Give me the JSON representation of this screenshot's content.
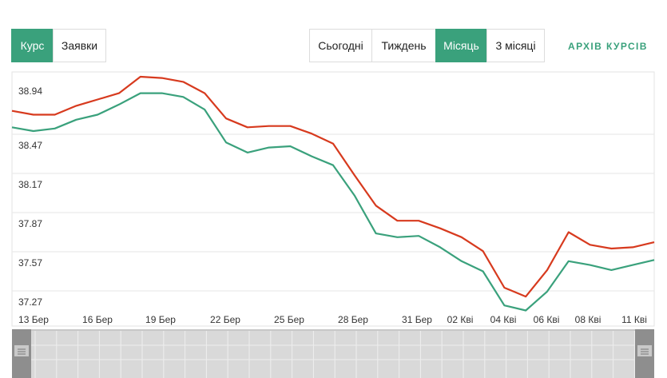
{
  "tabs_left": [
    {
      "label": "Курс",
      "active": true
    },
    {
      "label": "Заявки",
      "active": false
    }
  ],
  "tabs_right": [
    {
      "label": "Сьогодні",
      "active": false
    },
    {
      "label": "Тиждень",
      "active": false
    },
    {
      "label": "Місяць",
      "active": true
    },
    {
      "label": "3 місяці",
      "active": false
    }
  ],
  "archive_link": "АРХІВ КУРСІВ",
  "colors": {
    "accent": "#3aa17c",
    "sell": "#d73a1e",
    "buy": "#3aa17c"
  },
  "chart_data": {
    "type": "line",
    "yticks": [
      "38.94",
      "38.47",
      "38.17",
      "37.87",
      "37.57",
      "37.27"
    ],
    "ylim": [
      37.27,
      39.0
    ],
    "xticks": [
      "13 Бер",
      "16 Бер",
      "19 Бер",
      "22 Бер",
      "25 Бер",
      "28 Бер",
      "31 Бер",
      "02 Кві",
      "04 Кві",
      "06 Кві",
      "08 Кві",
      "11 Кві"
    ],
    "series": [
      {
        "color": "#d73a1e",
        "values": [
          38.79,
          38.76,
          38.76,
          38.83,
          38.88,
          38.93,
          39.06,
          39.05,
          39.02,
          38.93,
          38.73,
          38.66,
          38.67,
          38.67,
          38.61,
          38.53,
          38.28,
          38.04,
          37.92,
          37.92,
          37.86,
          37.79,
          37.68,
          37.39,
          37.32,
          37.53,
          37.83,
          37.73,
          37.7,
          37.71,
          37.75
        ]
      },
      {
        "color": "#3aa17c",
        "values": [
          38.66,
          38.63,
          38.65,
          38.72,
          38.76,
          38.84,
          38.93,
          38.93,
          38.9,
          38.8,
          38.54,
          38.46,
          38.5,
          38.51,
          38.43,
          38.36,
          38.12,
          37.82,
          37.79,
          37.8,
          37.71,
          37.6,
          37.52,
          37.25,
          37.21,
          37.36,
          37.6,
          37.57,
          37.53,
          37.57,
          37.61
        ]
      }
    ]
  }
}
